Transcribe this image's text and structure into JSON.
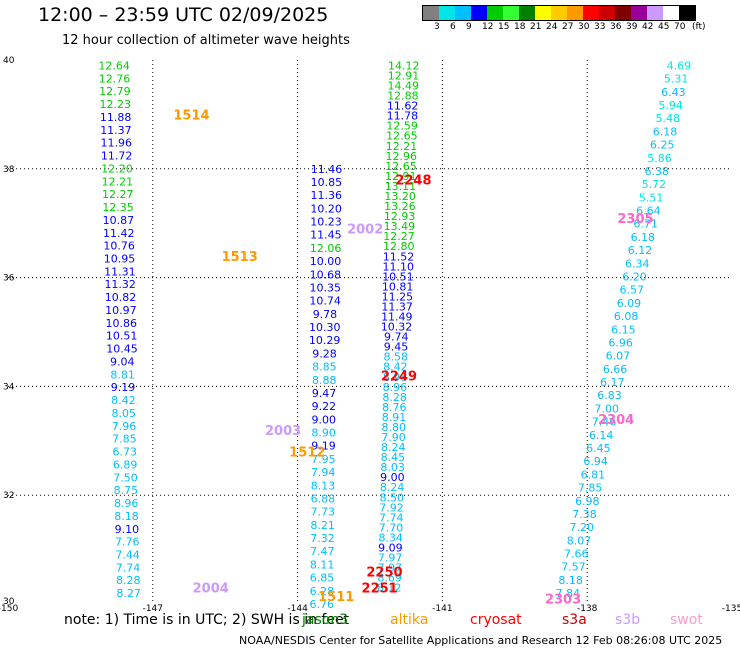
{
  "title": "12:00 – 23:59 UTC 02/09/2025",
  "subtitle": "12 hour collection of altimeter wave heights",
  "legend": {
    "unit": "(ft)",
    "ticks": [
      "3",
      "6",
      "9",
      "12",
      "15",
      "18",
      "21",
      "24",
      "27",
      "30",
      "33",
      "36",
      "39",
      "42",
      "45",
      "70"
    ],
    "colors": [
      "#808080",
      "#00e6e6",
      "#00bfff",
      "#0000ff",
      "#00cc00",
      "#33ff33",
      "#008000",
      "#ffff00",
      "#ffcc00",
      "#ff9900",
      "#ff0000",
      "#cc0000",
      "#800000",
      "#990099",
      "#cc99ff",
      "#ffffff",
      "#000000"
    ]
  },
  "footnote": {
    "note": "note:",
    "item1": "1) Time is in UTC;",
    "item2": "2) SWH is in feet"
  },
  "sources": [
    {
      "label": "jason3",
      "color": "#008000"
    },
    {
      "label": "altika",
      "color": "#ff9900"
    },
    {
      "label": "cryosat",
      "color": "#ff0000"
    },
    {
      "label": "s3a",
      "color": "#cc0000"
    },
    {
      "label": "s3b",
      "color": "#cc99ff"
    },
    {
      "label": "swot",
      "color": "#ff99cc"
    }
  ],
  "credit": "NOAA/NESDIS Center for Satellite Applications and Research    12 Feb 08:26:08 UTC 2025",
  "chart_data": {
    "type": "scatter",
    "xlim": [
      -150,
      -135
    ],
    "ylim": [
      30,
      40
    ],
    "xticks": [
      "-150",
      "-147",
      "-144",
      "-141",
      "-138",
      "-135"
    ],
    "yticks": [
      "30",
      "32",
      "34",
      "36",
      "38",
      "40"
    ],
    "grid": true,
    "color_by_value": true,
    "tracks": [
      {
        "id": "A",
        "start": [
          -147.8,
          39.9
        ],
        "end": [
          -147.5,
          30.2
        ],
        "values": [
          "12.64",
          "12.76",
          "12.79",
          "12.23",
          "11.88",
          "11.37",
          "11.96",
          "11.72",
          "12.20",
          "12.21",
          "12.27",
          "12.35",
          "10.87",
          "11.42",
          "10.76",
          "10.95",
          "11.31",
          "11.32",
          "10.82",
          "10.97",
          "10.86",
          "10.51",
          "10.45",
          "9.04",
          "8.81",
          "9.19",
          "8.42",
          "8.05",
          "7.96",
          "7.85",
          "6.73",
          "6.89",
          "7.50",
          "8.75",
          "8.96",
          "8.18",
          "9.10",
          "7.76",
          "7.44",
          "7.74",
          "8.28",
          "8.27"
        ]
      },
      {
        "id": "B",
        "start": [
          -143.4,
          38.0
        ],
        "end": [
          -143.5,
          30.0
        ],
        "values": [
          "11.46",
          "10.85",
          "11.36",
          "10.20",
          "10.23",
          "11.45",
          "12.06",
          "10.00",
          "10.68",
          "10.35",
          "10.74",
          "9.78",
          "10.30",
          "10.29",
          "9.28",
          "8.85",
          "8.88",
          "9.47",
          "9.22",
          "9.00",
          "8.90",
          "9.19",
          "7.95",
          "7.94",
          "8.13",
          "6.88",
          "7.73",
          "8.21",
          "7.32",
          "7.47",
          "8.11",
          "6.85",
          "6.28",
          "6.76"
        ]
      },
      {
        "id": "C",
        "start": [
          -141.8,
          39.9
        ],
        "end": [
          -142.1,
          30.3
        ],
        "values": [
          "14.12",
          "12.91",
          "14.49",
          "12.88",
          "11.62",
          "11.78",
          "12.59",
          "12.65",
          "12.21",
          "12.96",
          "12.65",
          "12.91",
          "13.11",
          "13.20",
          "13.26",
          "12.93",
          "13.49",
          "12.27",
          "12.80",
          "11.52",
          "11.10",
          "10.51",
          "10.81",
          "11.25",
          "11.37",
          "11.49",
          "10.32",
          "9.74",
          "9.45",
          "8.58",
          "8.42",
          "8.98",
          "8.96",
          "8.28",
          "8.76",
          "8.91",
          "8.80",
          "7.90",
          "8.24",
          "8.45",
          "8.03",
          "9.00",
          "8.24",
          "8.50",
          "7.92",
          "7.74",
          "7.70",
          "8.34",
          "9.09",
          "7.97",
          "7.97",
          "8.69",
          "8.12"
        ]
      },
      {
        "id": "D",
        "start": [
          -136.1,
          39.9
        ],
        "end": [
          -138.4,
          30.2
        ],
        "values": [
          "4.69",
          "5.31",
          "6.43",
          "5.94",
          "5.48",
          "6.18",
          "6.25",
          "5.86",
          "6.38",
          "5.72",
          "5.51",
          "6.64",
          "6.71",
          "6.18",
          "6.12",
          "6.34",
          "6.20",
          "6.57",
          "6.09",
          "6.08",
          "6.15",
          "6.96",
          "6.07",
          "6.66",
          "6.17",
          "6.83",
          "7.00",
          "7.46",
          "6.14",
          "6.45",
          "6.94",
          "6.81",
          "7.85",
          "6.98",
          "7.38",
          "7.20",
          "8.07",
          "7.66",
          "7.57",
          "8.18",
          "7.84"
        ]
      }
    ],
    "annotations": [
      {
        "text": "1514",
        "x": -146.2,
        "y": 39.0,
        "color": "#ff9900"
      },
      {
        "text": "1513",
        "x": -145.2,
        "y": 36.4,
        "color": "#ff9900"
      },
      {
        "text": "1512",
        "x": -143.8,
        "y": 32.8,
        "color": "#ff9900"
      },
      {
        "text": "1511",
        "x": -143.2,
        "y": 30.15,
        "color": "#ff9900"
      },
      {
        "text": "2002",
        "x": -142.6,
        "y": 36.9,
        "color": "#cc99ff"
      },
      {
        "text": "2003",
        "x": -144.3,
        "y": 33.2,
        "color": "#cc99ff"
      },
      {
        "text": "2004",
        "x": -145.8,
        "y": 30.3,
        "color": "#cc99ff"
      },
      {
        "text": "2248",
        "x": -141.6,
        "y": 37.8,
        "color": "#ff0000"
      },
      {
        "text": "2249",
        "x": -141.9,
        "y": 34.2,
        "color": "#ff0000"
      },
      {
        "text": "2250",
        "x": -142.2,
        "y": 30.6,
        "color": "#ff0000"
      },
      {
        "text": "2251",
        "x": -142.3,
        "y": 30.3,
        "color": "#ff0000"
      },
      {
        "text": "2305",
        "x": -137.0,
        "y": 37.1,
        "color": "#ff66cc"
      },
      {
        "text": "2304",
        "x": -137.4,
        "y": 33.4,
        "color": "#ff66cc"
      },
      {
        "text": "2303",
        "x": -138.5,
        "y": 30.1,
        "color": "#ff66cc"
      }
    ]
  }
}
